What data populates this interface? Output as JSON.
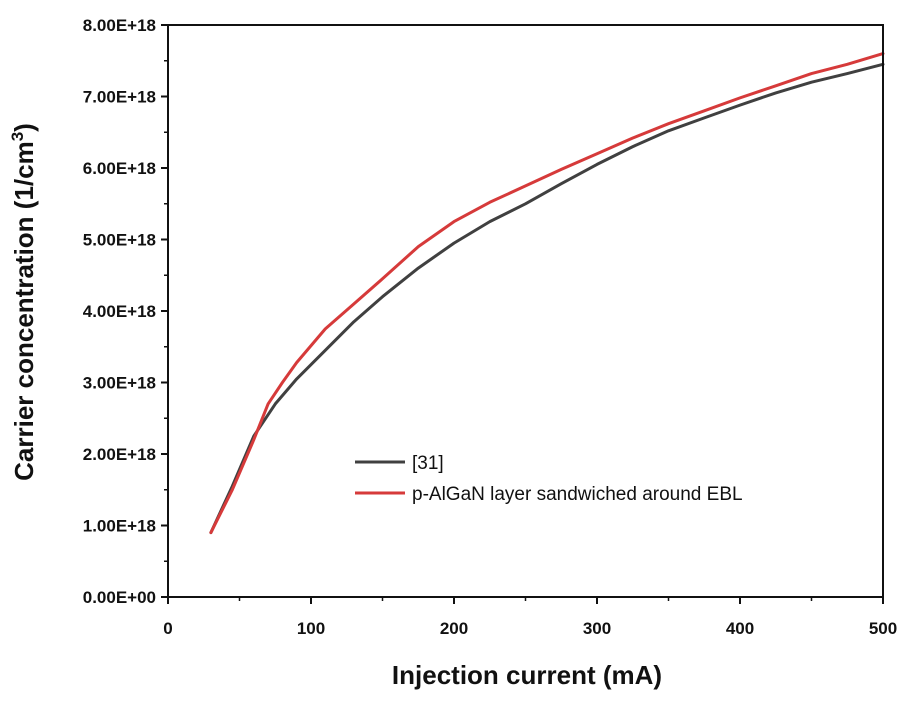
{
  "chart_data": {
    "type": "line",
    "title": "",
    "xlabel": "Injection current (mA)",
    "ylabel": {
      "main": "Carrier concentration (1/cm",
      "sup": "3",
      "close": ")"
    },
    "xlim": [
      0,
      500
    ],
    "ylim": [
      0,
      8e+18
    ],
    "x_ticks": [
      0,
      100,
      200,
      300,
      400,
      500
    ],
    "x_tick_labels": [
      "0",
      "100",
      "200",
      "300",
      "400",
      "500"
    ],
    "y_ticks": [
      0,
      1e+18,
      2e+18,
      3e+18,
      4e+18,
      5e+18,
      6e+18,
      7e+18,
      8e+18
    ],
    "y_tick_labels": [
      "0.00E+00",
      "1.00E+18",
      "2.00E+18",
      "3.00E+18",
      "4.00E+18",
      "5.00E+18",
      "6.00E+18",
      "7.00E+18",
      "8.00E+18"
    ],
    "grid": false,
    "legend_position": "lower-middle",
    "series": [
      {
        "name": "[31]",
        "color": "#404040",
        "x": [
          30,
          45,
          60,
          75,
          90,
          110,
          130,
          150,
          175,
          200,
          225,
          250,
          275,
          300,
          325,
          350,
          375,
          400,
          425,
          450,
          475,
          500
        ],
        "y": [
          9e+17,
          1.55e+18,
          2.25e+18,
          2.7e+18,
          3.05e+18,
          3.45e+18,
          3.85e+18,
          4.2e+18,
          4.6e+18,
          4.95e+18,
          5.25e+18,
          5.5e+18,
          5.78e+18,
          6.05e+18,
          6.3e+18,
          6.52e+18,
          6.7e+18,
          6.88e+18,
          7.05e+18,
          7.2e+18,
          7.32e+18,
          7.45e+18
        ]
      },
      {
        "name": "p-AlGaN layer sandwiched around EBL",
        "color": "#d63a3a",
        "x": [
          30,
          45,
          60,
          70,
          80,
          90,
          110,
          130,
          150,
          175,
          200,
          225,
          250,
          275,
          300,
          325,
          350,
          375,
          400,
          425,
          450,
          475,
          500
        ],
        "y": [
          9e+17,
          1.5e+18,
          2.2e+18,
          2.7e+18,
          3e+18,
          3.28e+18,
          3.75e+18,
          4.1e+18,
          4.45e+18,
          4.9e+18,
          5.25e+18,
          5.52e+18,
          5.75e+18,
          5.98e+18,
          6.2e+18,
          6.42e+18,
          6.62e+18,
          6.8e+18,
          6.98e+18,
          7.15e+18,
          7.32e+18,
          7.45e+18,
          7.6e+18
        ]
      }
    ]
  }
}
